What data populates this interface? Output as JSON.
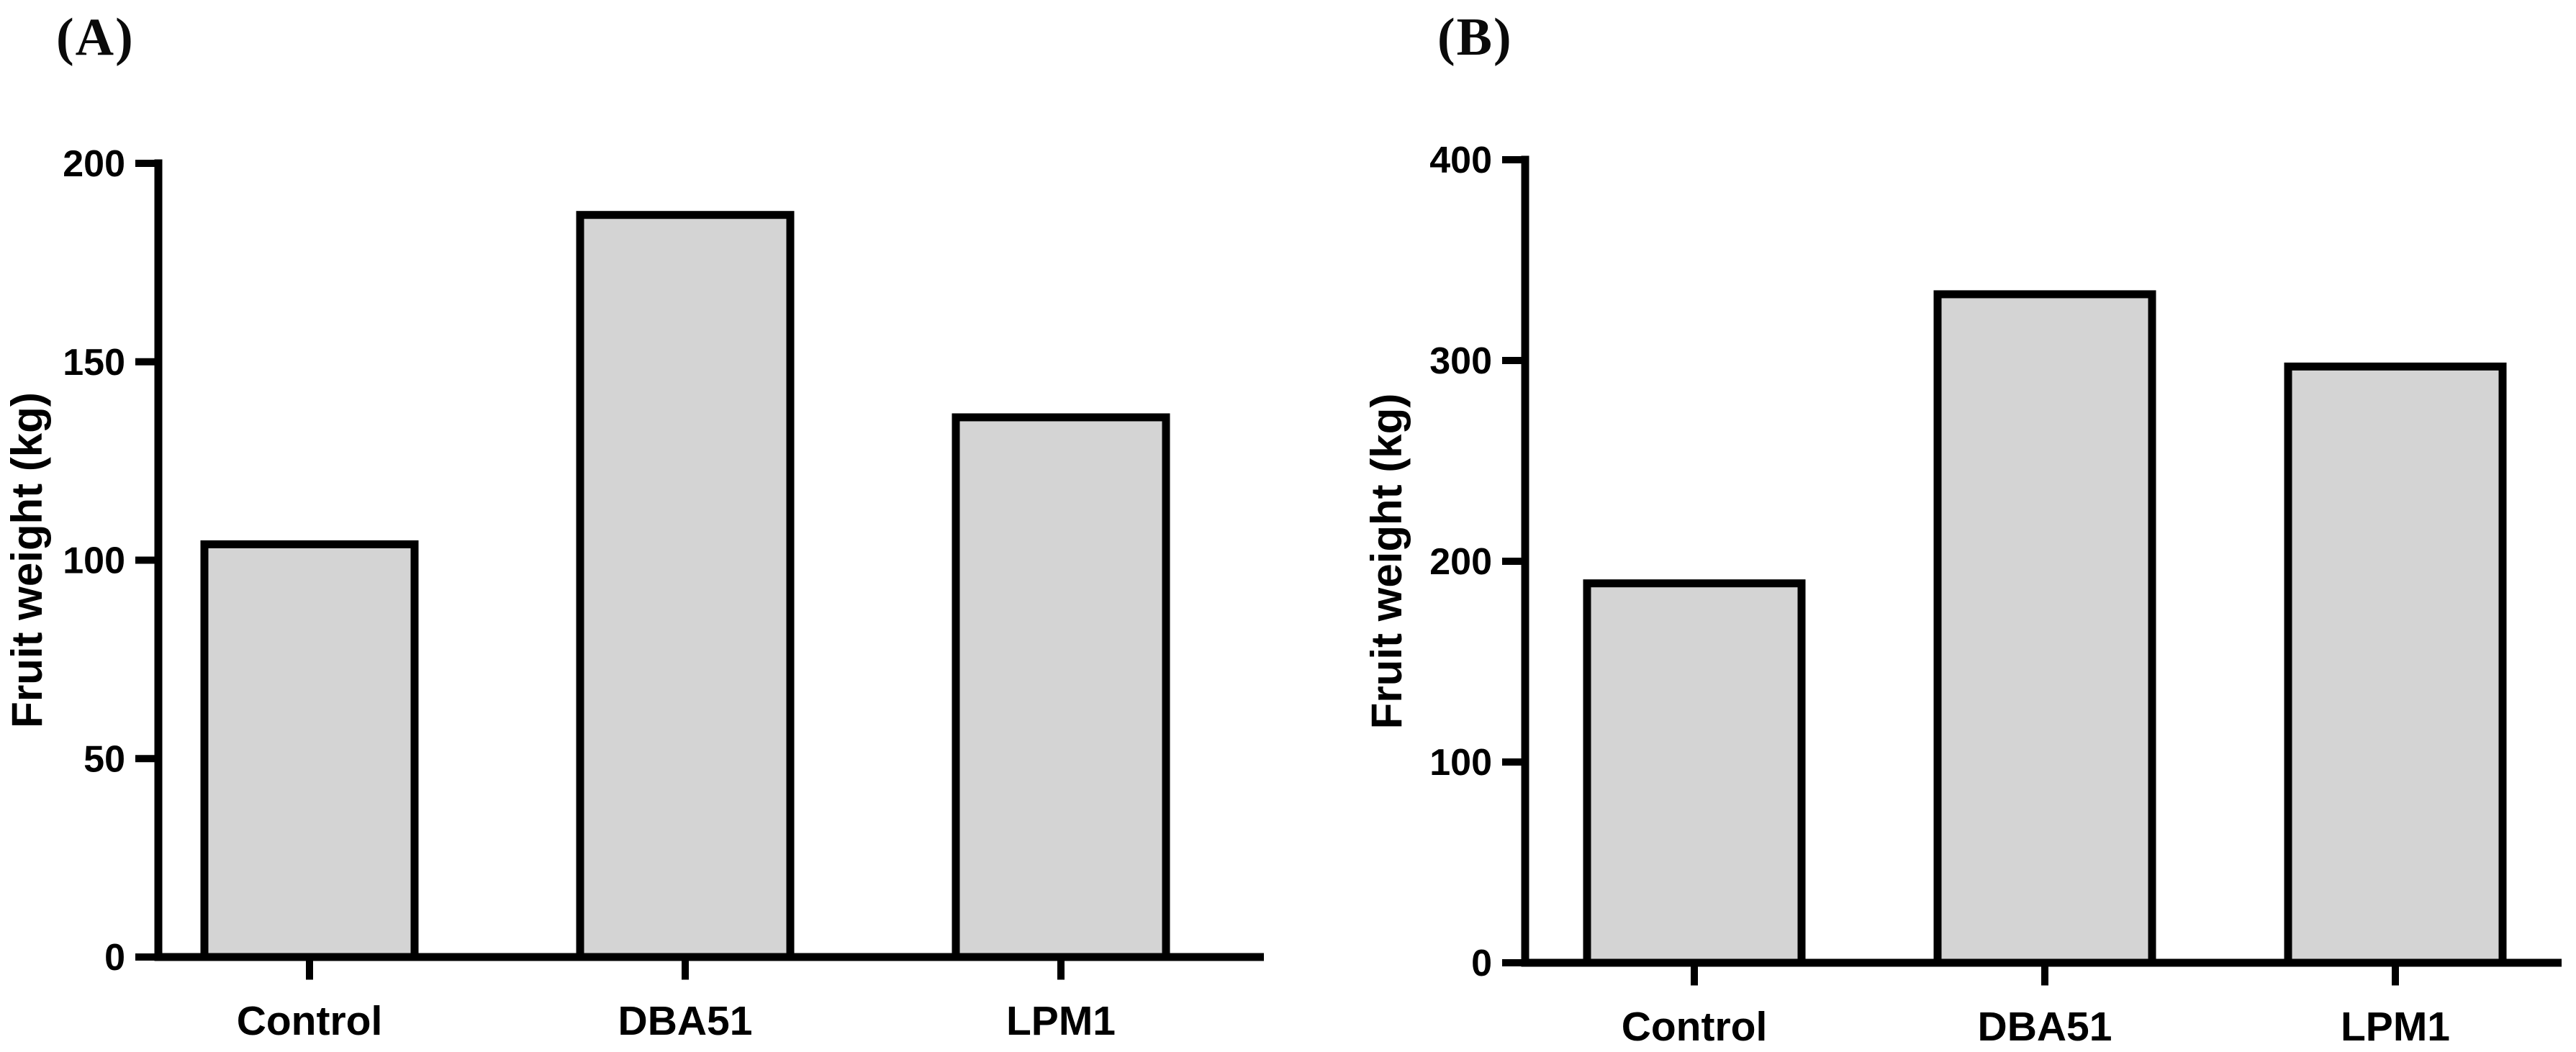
{
  "chart_data": [
    {
      "type": "bar",
      "panel_label": "(A)",
      "title": "",
      "xlabel": "",
      "ylabel": "Fruit weight (kg)",
      "categories": [
        "Control",
        "DBA51",
        "LPM1"
      ],
      "values": [
        104,
        187,
        136
      ],
      "ylim": [
        0,
        200
      ],
      "yticks": [
        0,
        50,
        100,
        150,
        200
      ],
      "grid": false,
      "legend": "none",
      "bar_fill": "#d4d4d4",
      "bar_stroke": "#000000",
      "axis_color": "#000000",
      "text_color": "#000000"
    },
    {
      "type": "bar",
      "panel_label": "(B)",
      "title": "",
      "xlabel": "",
      "ylabel": "Fruit weight (kg)",
      "categories": [
        "Control",
        "DBA51",
        "LPM1"
      ],
      "values": [
        189,
        333,
        297
      ],
      "ylim": [
        0,
        400
      ],
      "yticks": [
        0,
        100,
        200,
        300,
        400
      ],
      "grid": false,
      "legend": "none",
      "bar_fill": "#d4d4d4",
      "bar_stroke": "#000000",
      "axis_color": "#000000",
      "text_color": "#000000"
    }
  ]
}
